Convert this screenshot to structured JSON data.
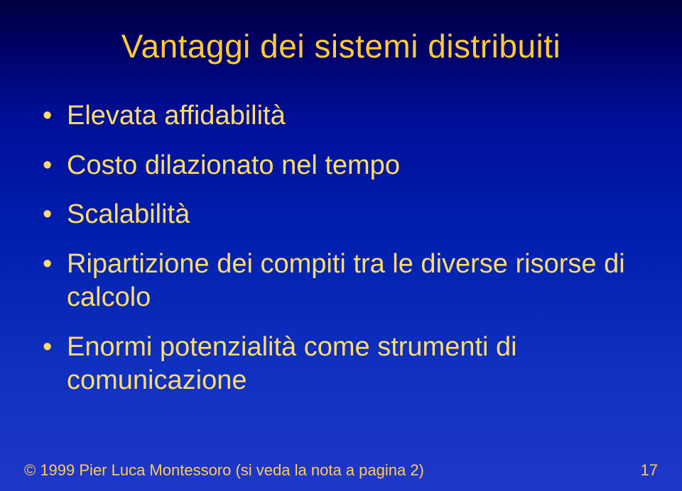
{
  "colors": {
    "title": "#ffcc33",
    "body": "#ffdd66",
    "footer": "#ffcc55"
  },
  "title": "Vantaggi dei sistemi distribuiti",
  "bullets": [
    "Elevata affidabilità",
    "Costo dilazionato nel tempo",
    "Scalabilità",
    "Ripartizione dei compiti tra le diverse risorse di calcolo",
    "Enormi potenzialità come strumenti di comunicazione"
  ],
  "footer": {
    "copyright": "© 1999 Pier Luca Montessoro (si veda la nota a pagina 2)",
    "page": "17"
  }
}
